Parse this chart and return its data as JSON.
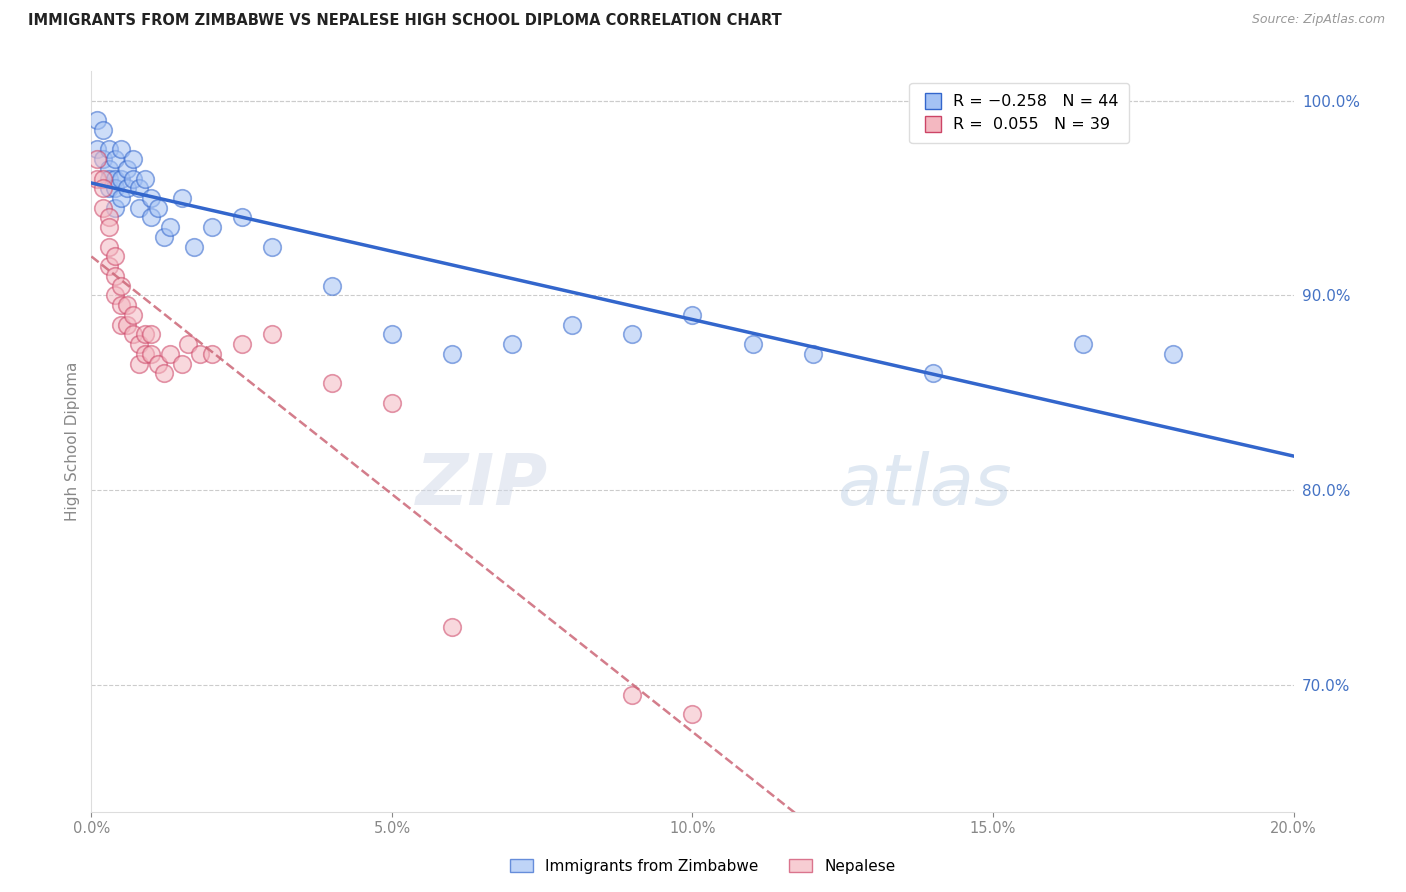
{
  "title": "IMMIGRANTS FROM ZIMBABWE VS NEPALESE HIGH SCHOOL DIPLOMA CORRELATION CHART",
  "source": "Source: ZipAtlas.com",
  "ylabel": "High School Diploma",
  "xlim": [
    0.0,
    0.2
  ],
  "ylim": [
    0.635,
    1.015
  ],
  "yticks": [
    0.7,
    0.8,
    0.9,
    1.0
  ],
  "xticks": [
    0.0,
    0.05,
    0.1,
    0.15,
    0.2
  ],
  "blue_color": "#a4c2f4",
  "pink_color": "#f4b8c1",
  "blue_line_color": "#3366cc",
  "pink_line_color": "#cc6677",
  "blue_edge": "#3366cc",
  "pink_edge": "#cc4466",
  "zimbabwe_x": [
    0.001,
    0.001,
    0.002,
    0.002,
    0.003,
    0.003,
    0.003,
    0.003,
    0.004,
    0.004,
    0.004,
    0.004,
    0.005,
    0.005,
    0.005,
    0.006,
    0.006,
    0.007,
    0.007,
    0.008,
    0.008,
    0.009,
    0.01,
    0.01,
    0.011,
    0.012,
    0.013,
    0.015,
    0.017,
    0.02,
    0.025,
    0.03,
    0.04,
    0.05,
    0.06,
    0.07,
    0.08,
    0.09,
    0.1,
    0.11,
    0.12,
    0.14,
    0.165,
    0.18
  ],
  "zimbabwe_y": [
    0.99,
    0.975,
    0.985,
    0.97,
    0.975,
    0.965,
    0.96,
    0.955,
    0.97,
    0.96,
    0.955,
    0.945,
    0.975,
    0.96,
    0.95,
    0.965,
    0.955,
    0.97,
    0.96,
    0.955,
    0.945,
    0.96,
    0.95,
    0.94,
    0.945,
    0.93,
    0.935,
    0.95,
    0.925,
    0.935,
    0.94,
    0.925,
    0.905,
    0.88,
    0.87,
    0.875,
    0.885,
    0.88,
    0.89,
    0.875,
    0.87,
    0.86,
    0.875,
    0.87
  ],
  "nepalese_x": [
    0.001,
    0.001,
    0.002,
    0.002,
    0.002,
    0.003,
    0.003,
    0.003,
    0.003,
    0.004,
    0.004,
    0.004,
    0.005,
    0.005,
    0.005,
    0.006,
    0.006,
    0.007,
    0.007,
    0.008,
    0.008,
    0.009,
    0.009,
    0.01,
    0.01,
    0.011,
    0.012,
    0.013,
    0.015,
    0.016,
    0.018,
    0.02,
    0.025,
    0.03,
    0.04,
    0.05,
    0.06,
    0.09,
    0.1
  ],
  "nepalese_y": [
    0.97,
    0.96,
    0.96,
    0.955,
    0.945,
    0.94,
    0.935,
    0.925,
    0.915,
    0.92,
    0.91,
    0.9,
    0.905,
    0.895,
    0.885,
    0.895,
    0.885,
    0.89,
    0.88,
    0.875,
    0.865,
    0.88,
    0.87,
    0.88,
    0.87,
    0.865,
    0.86,
    0.87,
    0.865,
    0.875,
    0.87,
    0.87,
    0.875,
    0.88,
    0.855,
    0.845,
    0.73,
    0.695,
    0.685
  ]
}
